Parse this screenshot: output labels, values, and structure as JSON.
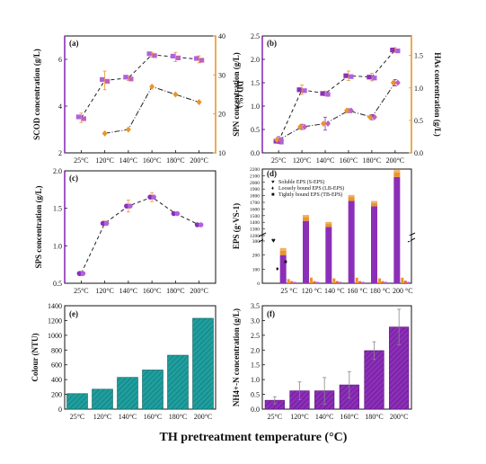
{
  "xlabel": "TH pretreatment temperature (°C)",
  "colors": {
    "purple": "#8b2fb8",
    "violet": "#b060e0",
    "orange": "#e8962a",
    "pink": "#c060c0",
    "teal": "#1f9e9e",
    "dark_purple": "#5a0f7a"
  },
  "chart_data": [
    {
      "panel": "(a)",
      "type": "line",
      "categories": [
        "25°C",
        "120°C",
        "140°C",
        "160°C",
        "180°C",
        "200°C"
      ],
      "ylabel": "SCOD concentration (g/L)",
      "ylim": [
        2,
        7
      ],
      "yticks": [
        2,
        4,
        6
      ],
      "y2label": "DD (%)",
      "y2lim": [
        10,
        40
      ],
      "y2ticks": [
        10,
        20,
        30,
        40
      ],
      "series": [
        {
          "axis": "left",
          "values": [
            3.5,
            5.1,
            5.2,
            6.2,
            6.1,
            6.0
          ],
          "errors": [
            0.2,
            0.4,
            0.1,
            0.1,
            0.2,
            0.15
          ]
        },
        {
          "axis": "right",
          "x": [
            "120°C",
            "140°C",
            "160°C",
            "180°C",
            "200°C"
          ],
          "values": [
            15,
            16,
            27,
            25,
            23
          ]
        }
      ]
    },
    {
      "panel": "(b)",
      "type": "line",
      "categories": [
        "25°C",
        "120°C",
        "140°C",
        "160°C",
        "180°C",
        "200°C"
      ],
      "ylabel": "SPN concentration (g/L)",
      "ylim": [
        0,
        2.5
      ],
      "yticks": [
        "0.0",
        "0.5",
        "1.0",
        "1.5",
        "2.0",
        "2.5"
      ],
      "y2label": "HAs concentration (g/L)",
      "y2lim": [
        0,
        1.8
      ],
      "y2ticks": [
        "0.0",
        "0.5",
        "1.0",
        "1.5"
      ],
      "series": [
        {
          "axis": "left",
          "values": [
            0.25,
            1.35,
            1.27,
            1.65,
            1.62,
            2.2
          ],
          "errors": [
            0.05,
            0.1,
            0.05,
            0.1,
            0.08,
            0.05
          ]
        },
        {
          "axis": "right",
          "values": [
            0.2,
            0.4,
            0.45,
            0.65,
            0.55,
            1.08
          ],
          "errors": [
            0.05,
            0.04,
            0.1,
            0.03,
            0.04,
            0.05
          ]
        }
      ]
    },
    {
      "panel": "(c)",
      "type": "line",
      "categories": [
        "25°C",
        "120°C",
        "140°C",
        "160°C",
        "180°C",
        "200°C"
      ],
      "ylabel": "SPS concentration (g/L)",
      "ylim": [
        0.5,
        2.0
      ],
      "yticks": [
        "0.5",
        "1.0",
        "1.5",
        "2.0"
      ],
      "series": [
        {
          "values": [
            0.63,
            1.3,
            1.53,
            1.65,
            1.43,
            1.28
          ],
          "errors": [
            0.03,
            0.03,
            0.08,
            0.06,
            0.02,
            0.02
          ]
        }
      ]
    },
    {
      "panel": "(d)",
      "type": "bar",
      "categories": [
        "25 °C",
        "120 °C",
        "140 °C",
        "160 °C",
        "180 °C",
        "200 °C"
      ],
      "ylabel": "EPS (g·VS-1)",
      "ylim_upper": [
        1200,
        2200
      ],
      "yticks_upper": [
        1200,
        1300,
        1400,
        1500,
        1600,
        1700,
        1800,
        1900,
        2000,
        2100,
        2200
      ],
      "ylim_lower": [
        0,
        300
      ],
      "yticks_lower": [
        0,
        100,
        200,
        300
      ],
      "legend": [
        {
          "symbol": "♥",
          "text": "Soluble EPS (S-EPS)"
        },
        {
          "symbol": "♦",
          "text": "Loosely bound EPS (LB-EPS)"
        },
        {
          "symbol": "■",
          "text": "Tightly bound EPS (TB-EPS)"
        }
      ],
      "groups": [
        {
          "TB": 200,
          "LB": 30,
          "S": 20,
          "SEPS": 30,
          "LBEPS": 15,
          "TBEPS": 10
        },
        {
          "TB": 1420,
          "LB": 60,
          "S": 30,
          "SEPS": 40,
          "LBEPS": 15,
          "TBEPS": 10
        },
        {
          "TB": 1330,
          "LB": 45,
          "S": 30,
          "SEPS": 35,
          "LBEPS": 15,
          "TBEPS": 10
        },
        {
          "TB": 1720,
          "LB": 60,
          "S": 30,
          "SEPS": 40,
          "LBEPS": 15,
          "TBEPS": 10
        },
        {
          "TB": 1640,
          "LB": 50,
          "S": 30,
          "SEPS": 35,
          "LBEPS": 15,
          "TBEPS": 10
        },
        {
          "TB": 2080,
          "LB": 70,
          "S": 35,
          "SEPS": 40,
          "LBEPS": 18,
          "TBEPS": 10
        }
      ],
      "annotations": [
        "♥",
        "♦",
        "■",
        "25 °C"
      ]
    },
    {
      "panel": "(e)",
      "type": "bar",
      "categories": [
        "25°C",
        "120°C",
        "140°C",
        "160°C",
        "180°C",
        "200°C"
      ],
      "ylabel": "Colour (NTU)",
      "ylim": [
        0,
        1400
      ],
      "yticks": [
        0,
        200,
        400,
        600,
        800,
        1000,
        1200,
        1400
      ],
      "values": [
        210,
        270,
        430,
        530,
        730,
        1230
      ]
    },
    {
      "panel": "(f)",
      "type": "bar",
      "categories": [
        "25°C",
        "120°C",
        "140°C",
        "160°C",
        "180°C",
        "200°C"
      ],
      "ylabel": "NH4+-N concentration (g/L)",
      "ylim": [
        0,
        3.5
      ],
      "yticks": [
        "0.0",
        "0.5",
        "1.0",
        "1.5",
        "2.0",
        "2.5",
        "3.0",
        "3.5"
      ],
      "values": [
        0.3,
        0.62,
        0.62,
        0.82,
        1.98,
        2.78
      ],
      "errors": [
        0.12,
        0.3,
        0.45,
        0.45,
        0.3,
        0.6
      ]
    }
  ]
}
